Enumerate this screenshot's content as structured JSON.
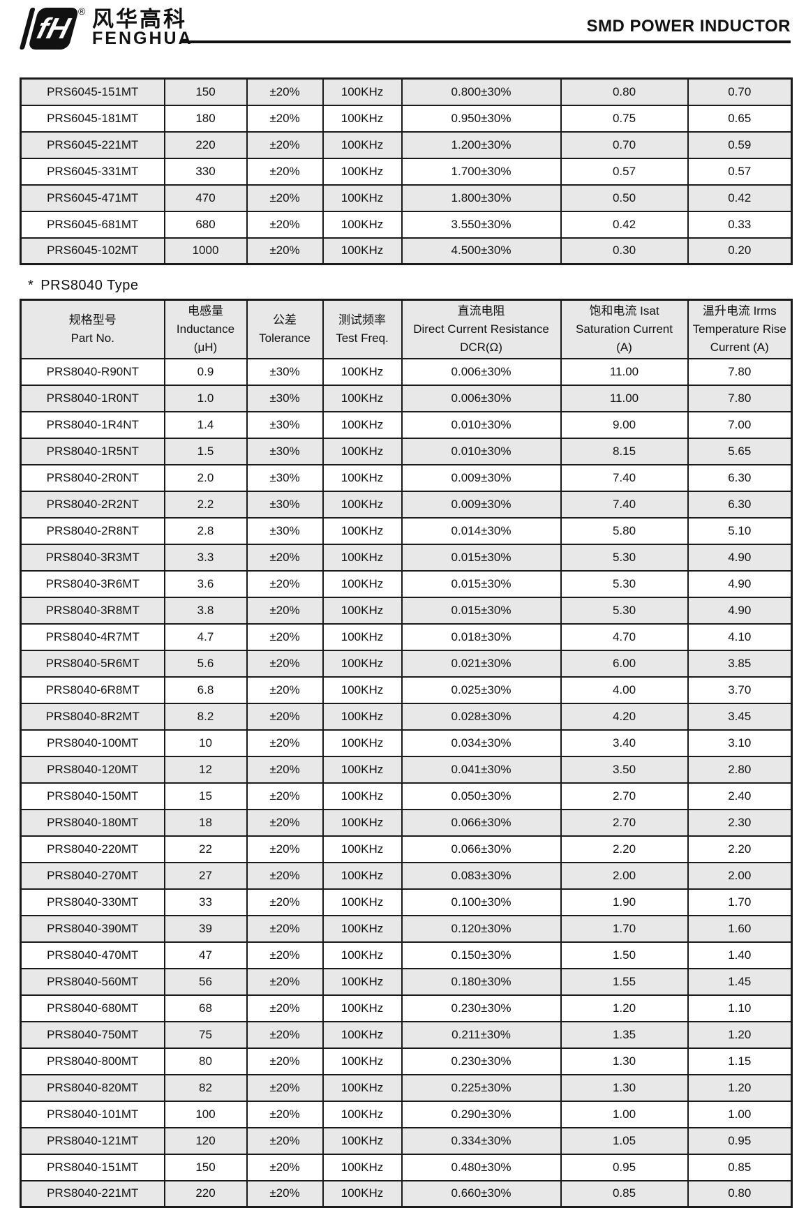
{
  "header": {
    "brand_cn": "风华高科",
    "brand_en": "FENGHUA",
    "registered": "®",
    "title": "SMD POWER INDUCTOR"
  },
  "section": {
    "star": "*",
    "label": "PRS8040 Type"
  },
  "columns": [
    {
      "line1": "规格型号",
      "line2": "Part No.",
      "line3": ""
    },
    {
      "line1": "电感量",
      "line2": "Inductance",
      "line3": "(μH)"
    },
    {
      "line1": "公差",
      "line2": "Tolerance",
      "line3": ""
    },
    {
      "line1": "测试频率",
      "line2": "Test Freq.",
      "line3": ""
    },
    {
      "line1": "直流电阻",
      "line2": "Direct Current Resistance",
      "line3": "DCR(Ω)"
    },
    {
      "line1": "饱和电流  Isat",
      "line2": "Saturation Current",
      "line3": "(A)"
    },
    {
      "line1": "温升电流  Irms",
      "line2": "Temperature Rise",
      "line3": "Current (A)"
    }
  ],
  "prs6045_table": {
    "rows": [
      [
        "PRS6045-151MT",
        "150",
        "±20%",
        "100KHz",
        "0.800±30%",
        "0.80",
        "0.70"
      ],
      [
        "PRS6045-181MT",
        "180",
        "±20%",
        "100KHz",
        "0.950±30%",
        "0.75",
        "0.65"
      ],
      [
        "PRS6045-221MT",
        "220",
        "±20%",
        "100KHz",
        "1.200±30%",
        "0.70",
        "0.59"
      ],
      [
        "PRS6045-331MT",
        "330",
        "±20%",
        "100KHz",
        "1.700±30%",
        "0.57",
        "0.57"
      ],
      [
        "PRS6045-471MT",
        "470",
        "±20%",
        "100KHz",
        "1.800±30%",
        "0.50",
        "0.42"
      ],
      [
        "PRS6045-681MT",
        "680",
        "±20%",
        "100KHz",
        "3.550±30%",
        "0.42",
        "0.33"
      ],
      [
        "PRS6045-102MT",
        "1000",
        "±20%",
        "100KHz",
        "4.500±30%",
        "0.30",
        "0.20"
      ]
    ]
  },
  "prs8040_table": {
    "rows": [
      [
        "PRS8040-R90NT",
        "0.9",
        "±30%",
        "100KHz",
        "0.006±30%",
        "11.00",
        "7.80"
      ],
      [
        "PRS8040-1R0NT",
        "1.0",
        "±30%",
        "100KHz",
        "0.006±30%",
        "11.00",
        "7.80"
      ],
      [
        "PRS8040-1R4NT",
        "1.4",
        "±30%",
        "100KHz",
        "0.010±30%",
        "9.00",
        "7.00"
      ],
      [
        "PRS8040-1R5NT",
        "1.5",
        "±30%",
        "100KHz",
        "0.010±30%",
        "8.15",
        "5.65"
      ],
      [
        "PRS8040-2R0NT",
        "2.0",
        "±30%",
        "100KHz",
        "0.009±30%",
        "7.40",
        "6.30"
      ],
      [
        "PRS8040-2R2NT",
        "2.2",
        "±30%",
        "100KHz",
        "0.009±30%",
        "7.40",
        "6.30"
      ],
      [
        "PRS8040-2R8NT",
        "2.8",
        "±30%",
        "100KHz",
        "0.014±30%",
        "5.80",
        "5.10"
      ],
      [
        "PRS8040-3R3MT",
        "3.3",
        "±20%",
        "100KHz",
        "0.015±30%",
        "5.30",
        "4.90"
      ],
      [
        "PRS8040-3R6MT",
        "3.6",
        "±20%",
        "100KHz",
        "0.015±30%",
        "5.30",
        "4.90"
      ],
      [
        "PRS8040-3R8MT",
        "3.8",
        "±20%",
        "100KHz",
        "0.015±30%",
        "5.30",
        "4.90"
      ],
      [
        "PRS8040-4R7MT",
        "4.7",
        "±20%",
        "100KHz",
        "0.018±30%",
        "4.70",
        "4.10"
      ],
      [
        "PRS8040-5R6MT",
        "5.6",
        "±20%",
        "100KHz",
        "0.021±30%",
        "6.00",
        "3.85"
      ],
      [
        "PRS8040-6R8MT",
        "6.8",
        "±20%",
        "100KHz",
        "0.025±30%",
        "4.00",
        "3.70"
      ],
      [
        "PRS8040-8R2MT",
        "8.2",
        "±20%",
        "100KHz",
        "0.028±30%",
        "4.20",
        "3.45"
      ],
      [
        "PRS8040-100MT",
        "10",
        "±20%",
        "100KHz",
        "0.034±30%",
        "3.40",
        "3.10"
      ],
      [
        "PRS8040-120MT",
        "12",
        "±20%",
        "100KHz",
        "0.041±30%",
        "3.50",
        "2.80"
      ],
      [
        "PRS8040-150MT",
        "15",
        "±20%",
        "100KHz",
        "0.050±30%",
        "2.70",
        "2.40"
      ],
      [
        "PRS8040-180MT",
        "18",
        "±20%",
        "100KHz",
        "0.066±30%",
        "2.70",
        "2.30"
      ],
      [
        "PRS8040-220MT",
        "22",
        "±20%",
        "100KHz",
        "0.066±30%",
        "2.20",
        "2.20"
      ],
      [
        "PRS8040-270MT",
        "27",
        "±20%",
        "100KHz",
        "0.083±30%",
        "2.00",
        "2.00"
      ],
      [
        "PRS8040-330MT",
        "33",
        "±20%",
        "100KHz",
        "0.100±30%",
        "1.90",
        "1.70"
      ],
      [
        "PRS8040-390MT",
        "39",
        "±20%",
        "100KHz",
        "0.120±30%",
        "1.70",
        "1.60"
      ],
      [
        "PRS8040-470MT",
        "47",
        "±20%",
        "100KHz",
        "0.150±30%",
        "1.50",
        "1.40"
      ],
      [
        "PRS8040-560MT",
        "56",
        "±20%",
        "100KHz",
        "0.180±30%",
        "1.55",
        "1.45"
      ],
      [
        "PRS8040-680MT",
        "68",
        "±20%",
        "100KHz",
        "0.230±30%",
        "1.20",
        "1.10"
      ],
      [
        "PRS8040-750MT",
        "75",
        "±20%",
        "100KHz",
        "0.211±30%",
        "1.35",
        "1.20"
      ],
      [
        "PRS8040-800MT",
        "80",
        "±20%",
        "100KHz",
        "0.230±30%",
        "1.30",
        "1.15"
      ],
      [
        "PRS8040-820MT",
        "82",
        "±20%",
        "100KHz",
        "0.225±30%",
        "1.30",
        "1.20"
      ],
      [
        "PRS8040-101MT",
        "100",
        "±20%",
        "100KHz",
        "0.290±30%",
        "1.00",
        "1.00"
      ],
      [
        "PRS8040-121MT",
        "120",
        "±20%",
        "100KHz",
        "0.334±30%",
        "1.05",
        "0.95"
      ],
      [
        "PRS8040-151MT",
        "150",
        "±20%",
        "100KHz",
        "0.480±30%",
        "0.95",
        "0.85"
      ],
      [
        "PRS8040-221MT",
        "220",
        "±20%",
        "100KHz",
        "0.660±30%",
        "0.85",
        "0.80"
      ]
    ]
  },
  "colors": {
    "stripe": "#e8e8e8",
    "border": "#1a1a1a",
    "text": "#111111"
  }
}
